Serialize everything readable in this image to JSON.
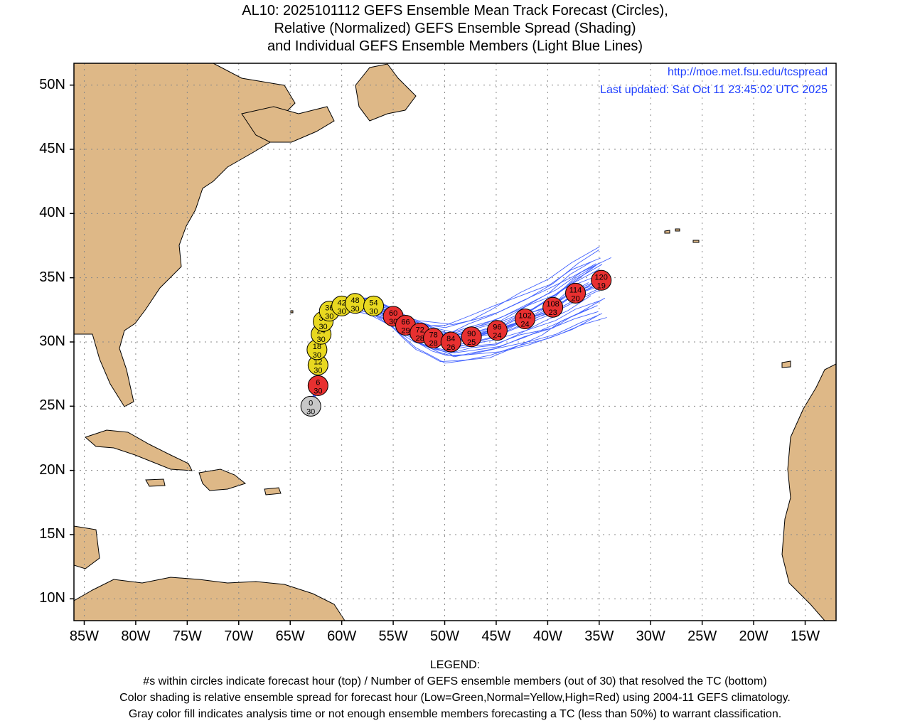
{
  "title": {
    "line1": "AL10: 2025101112 GEFS Ensemble Mean Track Forecast (Circles),",
    "line2": "Relative (Normalized) GEFS Ensemble Spread (Shading)",
    "line3": "and Individual GEFS Ensemble Members (Light Blue Lines)"
  },
  "source_url": "http://moe.met.fsu.edu/tcspread",
  "last_updated": "Last updated: Sat Oct 11 23:45:02 UTC 2025",
  "lat_labels": [
    "50N",
    "45N",
    "40N",
    "35N",
    "30N",
    "25N",
    "20N",
    "15N",
    "10N"
  ],
  "lon_labels": [
    "85W",
    "80W",
    "75W",
    "70W",
    "65W",
    "60W",
    "55W",
    "50W",
    "45W",
    "40W",
    "35W",
    "30W",
    "25W",
    "20W",
    "15W"
  ],
  "legend": {
    "heading": "LEGEND:",
    "line1": "#s within circles indicate forecast hour (top) / Number of GEFS ensemble members (out of 30) that resolved the TC (bottom)",
    "line2": "Color shading is relative ensemble spread for forecast hour (Low=Green,Normal=Yellow,High=Red) using 2004-11 GEFS climatology.",
    "line3": "Gray color fill indicates analysis time or not enough ensemble members forecasting a TC (less than 50%) to warrant classification."
  },
  "colors": {
    "land": "#deb887",
    "ocean": "#ffffff",
    "member_track": "#4060ff",
    "spread_normal": "#e8d820",
    "spread_high": "#e83030",
    "analysis": "#c8c8c8",
    "text_link": "#1f3fff"
  },
  "map_extent": {
    "lon_min": -86,
    "lon_max": -12,
    "lat_min": 8.3,
    "lat_max": 51.7
  },
  "mean_track": [
    {
      "hour": "0",
      "members": "30",
      "lat": 25.0,
      "lon": -63.0,
      "spread": "analysis"
    },
    {
      "hour": "6",
      "members": "30",
      "lat": 26.6,
      "lon": -62.3,
      "spread": "high"
    },
    {
      "hour": "12",
      "members": "30",
      "lat": 28.2,
      "lon": -62.3,
      "spread": "normal"
    },
    {
      "hour": "18",
      "members": "30",
      "lat": 29.4,
      "lon": -62.4,
      "spread": "normal"
    },
    {
      "hour": "24",
      "members": "30",
      "lat": 30.6,
      "lon": -62.0,
      "spread": "normal"
    },
    {
      "hour": "30",
      "members": "30",
      "lat": 31.6,
      "lon": -61.8,
      "spread": "normal"
    },
    {
      "hour": "36",
      "members": "30",
      "lat": 32.4,
      "lon": -61.2,
      "spread": "normal"
    },
    {
      "hour": "42",
      "members": "30",
      "lat": 32.8,
      "lon": -60.0,
      "spread": "normal"
    },
    {
      "hour": "48",
      "members": "30",
      "lat": 33.0,
      "lon": -58.7,
      "spread": "normal"
    },
    {
      "hour": "54",
      "members": "30",
      "lat": 32.8,
      "lon": -56.9,
      "spread": "normal"
    },
    {
      "hour": "60",
      "members": "30",
      "lat": 32.0,
      "lon": -55.0,
      "spread": "high"
    },
    {
      "hour": "66",
      "members": "29",
      "lat": 31.3,
      "lon": -53.8,
      "spread": "high"
    },
    {
      "hour": "72",
      "members": "28",
      "lat": 30.7,
      "lon": -52.4,
      "spread": "high"
    },
    {
      "hour": "78",
      "members": "28",
      "lat": 30.3,
      "lon": -51.1,
      "spread": "high"
    },
    {
      "hour": "84",
      "members": "26",
      "lat": 30.0,
      "lon": -49.4,
      "spread": "high"
    },
    {
      "hour": "90",
      "members": "25",
      "lat": 30.4,
      "lon": -47.4,
      "spread": "high"
    },
    {
      "hour": "96",
      "members": "24",
      "lat": 30.9,
      "lon": -44.9,
      "spread": "high"
    },
    {
      "hour": "102",
      "members": "24",
      "lat": 31.8,
      "lon": -42.2,
      "spread": "high"
    },
    {
      "hour": "108",
      "members": "23",
      "lat": 32.7,
      "lon": -39.5,
      "spread": "high"
    },
    {
      "hour": "114",
      "members": "20",
      "lat": 33.8,
      "lon": -37.3,
      "spread": "high"
    },
    {
      "hour": "120",
      "members": "19",
      "lat": 34.8,
      "lon": -34.8,
      "spread": "high"
    }
  ]
}
